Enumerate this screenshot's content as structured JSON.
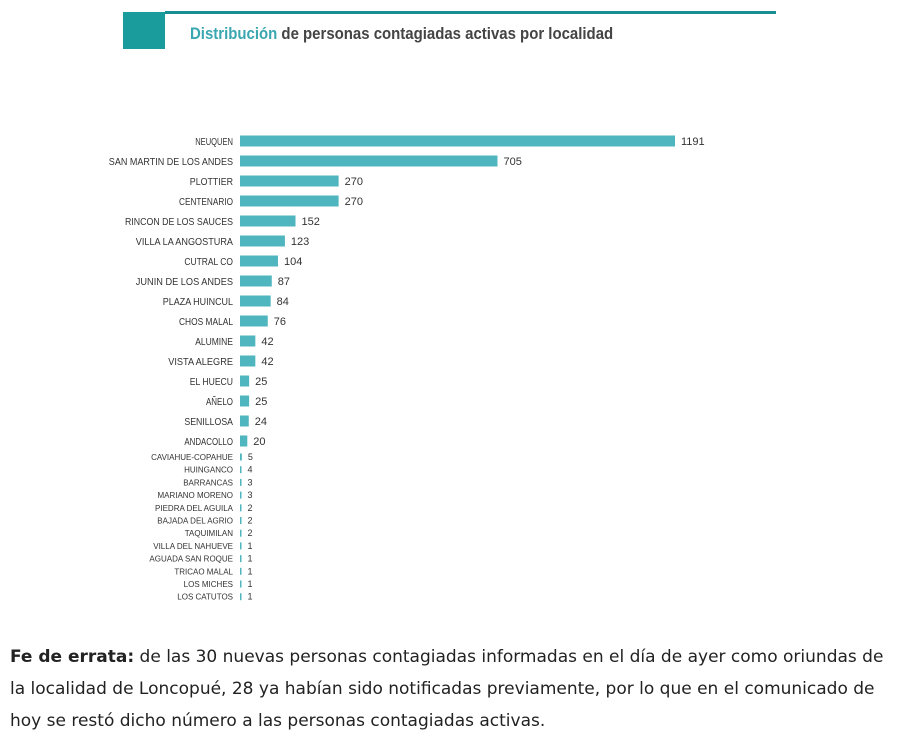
{
  "chart_data": {
    "type": "bar",
    "orientation": "horizontal",
    "title_accent": "Distribución",
    "title_rest": " de personas contagiadas activas por localidad",
    "bar_color": "#4fb6bf",
    "categories": [
      "NEUQUEN",
      "SAN MARTIN DE LOS ANDES",
      "PLOTTIER",
      "CENTENARIO",
      "RINCON DE LOS SAUCES",
      "VILLA LA ANGOSTURA",
      "CUTRAL CO",
      "JUNIN DE LOS ANDES",
      "PLAZA HUINCUL",
      "CHOS MALAL",
      "ALUMINE",
      "VISTA ALEGRE",
      "EL HUECU",
      "AÑELO",
      "SENILLOSA",
      "ANDACOLLO",
      "CAVIAHUE-COPAHUE",
      "HUINGANCO",
      "BARRANCAS",
      "MARIANO MORENO",
      "PIEDRA DEL AGUILA",
      "BAJADA DEL AGRIO",
      "TAQUIMILAN",
      "VILLA DEL NAHUEVE",
      "AGUADA SAN ROQUE",
      "TRICAO MALAL",
      "LOS MICHES",
      "LOS CATUTOS"
    ],
    "values": [
      1191,
      705,
      270,
      270,
      152,
      123,
      104,
      87,
      84,
      76,
      42,
      42,
      25,
      25,
      24,
      20,
      5,
      4,
      3,
      3,
      2,
      2,
      2,
      1,
      1,
      1,
      1,
      1
    ],
    "xlim": [
      0,
      1191
    ]
  },
  "note": {
    "bold": "Fe de errata:",
    "text": " de las 30 nuevas personas contagiadas informadas en el día de ayer como oriundas de la localidad de Loncopué, 28 ya habían sido notificadas previamente, por lo que en el comunicado de hoy se restó dicho número a las personas contagiadas activas."
  }
}
